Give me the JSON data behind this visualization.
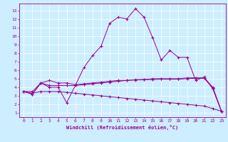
{
  "title": "Windchill (Refroidissement éolien,°C)",
  "bg_color": "#cceeff",
  "line_color": "#990099",
  "grid_color": "#aadddd",
  "x_ticks": [
    0,
    1,
    2,
    3,
    4,
    5,
    6,
    7,
    8,
    9,
    10,
    11,
    12,
    13,
    14,
    15,
    16,
    17,
    18,
    19,
    20,
    21,
    22,
    23
  ],
  "y_ticks": [
    1,
    2,
    3,
    4,
    5,
    6,
    7,
    8,
    9,
    10,
    11,
    12,
    13
  ],
  "ylim": [
    0.5,
    13.8
  ],
  "xlim": [
    -0.5,
    23.5
  ],
  "series1": [
    3.5,
    3.2,
    4.5,
    4.0,
    4.0,
    2.2,
    4.2,
    6.3,
    7.7,
    8.8,
    11.5,
    12.2,
    12.0,
    13.2,
    12.2,
    9.8,
    7.2,
    8.3,
    7.5,
    7.5,
    4.8,
    5.2,
    3.8,
    1.2
  ],
  "series2": [
    3.5,
    3.2,
    4.5,
    4.8,
    4.5,
    4.5,
    4.3,
    4.4,
    4.5,
    4.6,
    4.7,
    4.8,
    4.8,
    4.9,
    4.9,
    5.0,
    5.0,
    5.0,
    5.0,
    5.1,
    5.1,
    5.1,
    4.0,
    1.2
  ],
  "series3": [
    3.5,
    3.3,
    3.5,
    3.5,
    3.5,
    3.4,
    3.3,
    3.2,
    3.1,
    3.0,
    2.9,
    2.8,
    2.7,
    2.6,
    2.5,
    2.4,
    2.3,
    2.2,
    2.1,
    2.0,
    1.9,
    1.8,
    1.5,
    1.2
  ],
  "series4": [
    3.5,
    3.5,
    4.5,
    4.2,
    4.2,
    4.2,
    4.2,
    4.3,
    4.4,
    4.5,
    4.6,
    4.7,
    4.8,
    4.85,
    4.9,
    4.9,
    4.95,
    4.95,
    4.95,
    5.0,
    5.05,
    5.05,
    3.9,
    1.2
  ]
}
